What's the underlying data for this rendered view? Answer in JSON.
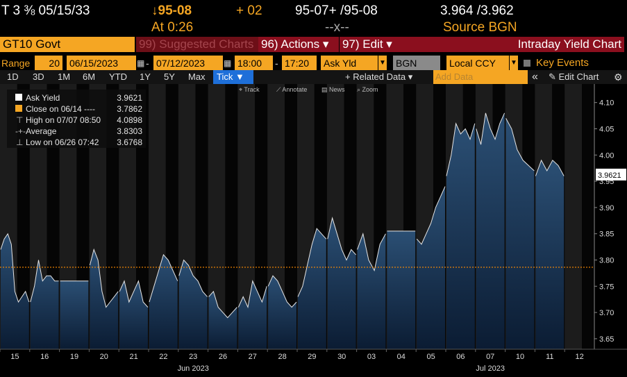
{
  "header": {
    "ticker": "T 3 ⅜ 05/15/33",
    "price_change": "↓95-08",
    "at_label": "At 0:26",
    "tick_change": "+ 02",
    "bid_ask_price": "95-07+ /95-08",
    "spread_placeholder": "--x--",
    "bid_ask_yield": "3.964 /3.962",
    "source": "Source BGN"
  },
  "toolbar": {
    "security": "GT10 Govt",
    "suggested_charts": "99) Suggested Charts",
    "actions": "96) Actions ▾",
    "edit": "97) Edit ▾",
    "title": "Intraday Yield Chart"
  },
  "range_bar": {
    "range_label": "Range",
    "days": "20",
    "start_date": "06/15/2023",
    "end_date": "07/12/2023",
    "start_time": "18:00",
    "end_time": "17:20",
    "field": "Ask Yld",
    "source": "BGN",
    "currency": "Local CCY",
    "key_events": "Key Events"
  },
  "period_bar": {
    "periods": [
      "1D",
      "3D",
      "1M",
      "6M",
      "YTD",
      "1Y",
      "5Y",
      "Max"
    ],
    "active": "Tick ▼",
    "related_data": "+ Related Data ▾",
    "add_data_placeholder": "Add Data",
    "collapse": "«",
    "edit_chart": "✎ Edit Chart",
    "settings_icon": "gear-icon"
  },
  "tools": [
    "Track",
    "Annotate",
    "News",
    "Zoom"
  ],
  "legend": [
    {
      "label": "Ask Yield",
      "value": "3.9621"
    },
    {
      "label": "Close on 06/14 ----",
      "value": "3.7862"
    },
    {
      "label": "High on 07/07 08:50",
      "value": "4.0898"
    },
    {
      "label": "Average",
      "value": "3.8303"
    },
    {
      "label": "Low on 06/26 07:42",
      "value": "3.6768"
    }
  ],
  "colors": {
    "area_top": "#2b4f74",
    "area_bottom": "#0b1c33",
    "line": "#e6e6e6",
    "close_line": "#ff8c00",
    "orange": "#f5a623",
    "red_bar": "#8b0f1e",
    "active_tab": "#1e6fd9"
  },
  "chart_data": {
    "type": "area",
    "title": "Intraday Yield Chart",
    "ylabel": "",
    "xlabel": "",
    "ylim": [
      3.63,
      4.13
    ],
    "yticks": [
      "3.65",
      "3.70",
      "3.75",
      "3.80",
      "3.85",
      "3.90",
      "3.95",
      "4.00",
      "4.05",
      "4.10"
    ],
    "current_value_label": "3.9621",
    "close_reference": 3.7862,
    "days": [
      "15",
      "16",
      "19",
      "20",
      "21",
      "22",
      "23",
      "26",
      "27",
      "28",
      "29",
      "30",
      "03",
      "04",
      "05",
      "06",
      "07",
      "10",
      "11",
      "12"
    ],
    "months": [
      {
        "label": "Jun 2023",
        "at_day": "23"
      },
      {
        "label": "Jul 2023",
        "at_day": "07"
      }
    ],
    "series": [
      {
        "name": "Ask Yield",
        "daily_path": [
          [
            3.82,
            3.84,
            3.85,
            3.83,
            3.74,
            3.72,
            3.73,
            3.74,
            3.72
          ],
          [
            3.72,
            3.75,
            3.8,
            3.76,
            3.77,
            3.77,
            3.76,
            3.76
          ],
          [
            3.76,
            3.76,
            3.76,
            3.76
          ],
          [
            3.79,
            3.82,
            3.8,
            3.74,
            3.71,
            3.72,
            3.73,
            3.74
          ],
          [
            3.74,
            3.76,
            3.72,
            3.74,
            3.76,
            3.72,
            3.71
          ],
          [
            3.72,
            3.75,
            3.78,
            3.81,
            3.8,
            3.78,
            3.76
          ],
          [
            3.77,
            3.8,
            3.79,
            3.77,
            3.76,
            3.74,
            3.73
          ],
          [
            3.73,
            3.74,
            3.71,
            3.7,
            3.69,
            3.7,
            3.71
          ],
          [
            3.71,
            3.73,
            3.71,
            3.76,
            3.74,
            3.72,
            3.75
          ],
          [
            3.75,
            3.77,
            3.76,
            3.74,
            3.72,
            3.71,
            3.72
          ],
          [
            3.73,
            3.75,
            3.79,
            3.83,
            3.86,
            3.85,
            3.84
          ],
          [
            3.84,
            3.88,
            3.85,
            3.82,
            3.8,
            3.82,
            3.81
          ],
          [
            3.82,
            3.85,
            3.8,
            3.78,
            3.83,
            3.85
          ],
          [
            3.855,
            3.855,
            3.855,
            3.855
          ],
          [
            3.84,
            3.83,
            3.85,
            3.87,
            3.9,
            3.92,
            3.94
          ],
          [
            3.96,
            4.0,
            4.06,
            4.04,
            4.05,
            4.03,
            4.06
          ],
          [
            4.05,
            4.02,
            4.08,
            4.05,
            4.03,
            4.06,
            4.08
          ],
          [
            4.07,
            4.05,
            4.01,
            3.99,
            3.98,
            3.97
          ],
          [
            3.96,
            3.99,
            3.97,
            3.99,
            3.98,
            3.96
          ],
          []
        ]
      }
    ]
  }
}
